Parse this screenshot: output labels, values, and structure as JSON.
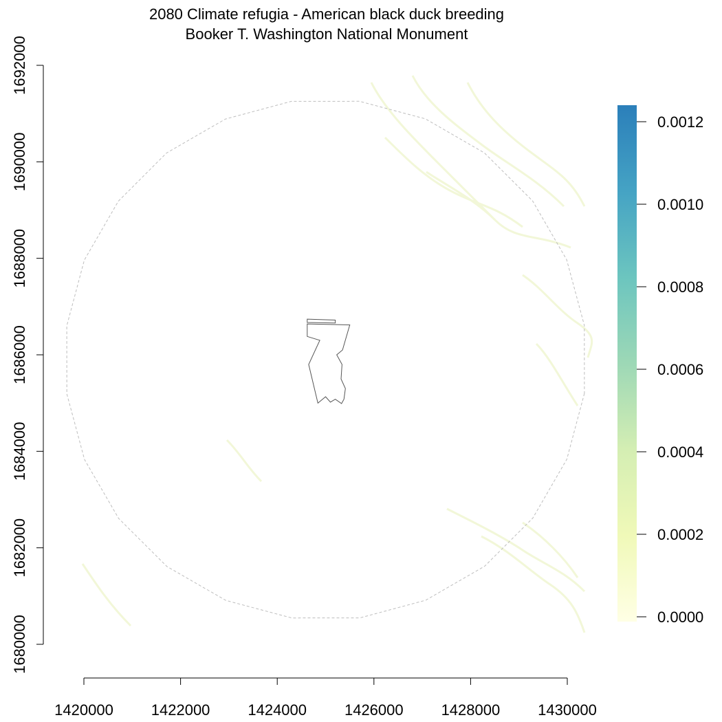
{
  "title": {
    "line1": "2080 Climate refugia - American black duck breeding",
    "line2": "Booker T. Washington National Monument"
  },
  "map": {
    "x_axis": {
      "ticks": [
        1420000,
        1422000,
        1424000,
        1426000,
        1428000,
        1430000
      ],
      "labels": [
        "1420000",
        "1422000",
        "1424000",
        "1426000",
        "1428000",
        "1430000"
      ],
      "range": [
        1420000,
        1430000
      ]
    },
    "y_axis": {
      "ticks": [
        1680000,
        1682000,
        1684000,
        1686000,
        1688000,
        1690000,
        1692000
      ],
      "labels": [
        "1680000",
        "1682000",
        "1684000",
        "1686000",
        "1688000",
        "1690000",
        "1692000"
      ],
      "range": [
        1680000,
        1692000
      ]
    },
    "buffer": {
      "center": [
        1425000,
        1685900
      ],
      "radius_m": 5400,
      "stroke_color": "#bdbdbd"
    },
    "boundary": {
      "stroke_color": "#555555",
      "polygon": [
        [
          1424620,
          1686640
        ],
        [
          1425500,
          1686620
        ],
        [
          1425350,
          1686100
        ],
        [
          1425230,
          1686000
        ],
        [
          1425340,
          1685800
        ],
        [
          1425320,
          1685500
        ],
        [
          1425410,
          1685300
        ],
        [
          1425380,
          1685080
        ],
        [
          1425330,
          1684990
        ],
        [
          1425200,
          1685080
        ],
        [
          1425100,
          1685020
        ],
        [
          1425000,
          1685130
        ],
        [
          1424840,
          1685000
        ],
        [
          1424650,
          1685800
        ],
        [
          1424880,
          1686300
        ],
        [
          1424620,
          1686380
        ]
      ],
      "strip": [
        [
          1424620,
          1686740
        ],
        [
          1425200,
          1686720
        ],
        [
          1425200,
          1686660
        ],
        [
          1424620,
          1686670
        ]
      ]
    },
    "raster_color": "#f2f7d8"
  },
  "legend": {
    "min": 0.0,
    "max": 0.00124,
    "ticks": [
      0.0,
      0.0002,
      0.0004,
      0.0006,
      0.0008,
      0.001,
      0.0012
    ],
    "labels": [
      "0.0000",
      "0.0002",
      "0.0004",
      "0.0006",
      "0.0008",
      "0.0010",
      "0.0012"
    ],
    "colors": [
      "#ffffe5",
      "#f0f9b8",
      "#d4eeb3",
      "#9dd8b6",
      "#6cc5bf",
      "#45a3c4",
      "#2b7fba"
    ]
  }
}
